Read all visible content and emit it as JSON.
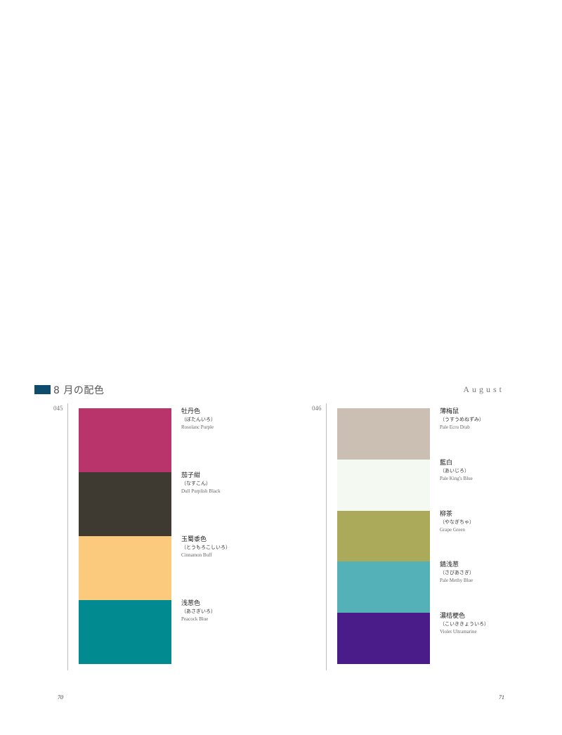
{
  "header": {
    "title": "8 月の配色",
    "month": "August"
  },
  "palettes": [
    {
      "number": "045",
      "colors": [
        {
          "kanji": "牡丹色",
          "kana": "（ぼたんいろ）",
          "en": "Rosolanc Purple",
          "hex": "#b9346b"
        },
        {
          "kanji": "茄子紺",
          "kana": "（なすこん）",
          "en": "Dull Purplish Black",
          "hex": "#3e3a32"
        },
        {
          "kanji": "玉蜀黍色",
          "kana": "（とうもろこしいろ）",
          "en": "Cinnamon Buff",
          "hex": "#fbca7c"
        },
        {
          "kanji": "浅葱色",
          "kana": "（あさぎいろ）",
          "en": "Peacock Blue",
          "hex": "#018b91"
        }
      ]
    },
    {
      "number": "046",
      "colors": [
        {
          "kanji": "薄梅鼠",
          "kana": "（うすうめねずみ）",
          "en": "Pale Ecru Drab",
          "hex": "#cbbeb3"
        },
        {
          "kanji": "藍白",
          "kana": "（あいじろ）",
          "en": "Pale King's Blue",
          "hex": "#f4f9f1"
        },
        {
          "kanji": "柳茶",
          "kana": "（やなぎちゃ）",
          "en": "Grape Green",
          "hex": "#aaaa5a"
        },
        {
          "kanji": "錆浅葱",
          "kana": "（さびあさぎ）",
          "en": "Pale Methy Blue",
          "hex": "#55b1b8"
        },
        {
          "kanji": "濃桔梗色",
          "kana": "（こいききょういろ）",
          "en": "Violet Ultramarine",
          "hex": "#4a1c8a"
        }
      ]
    }
  ],
  "folio": {
    "left": "70",
    "right": "71"
  }
}
